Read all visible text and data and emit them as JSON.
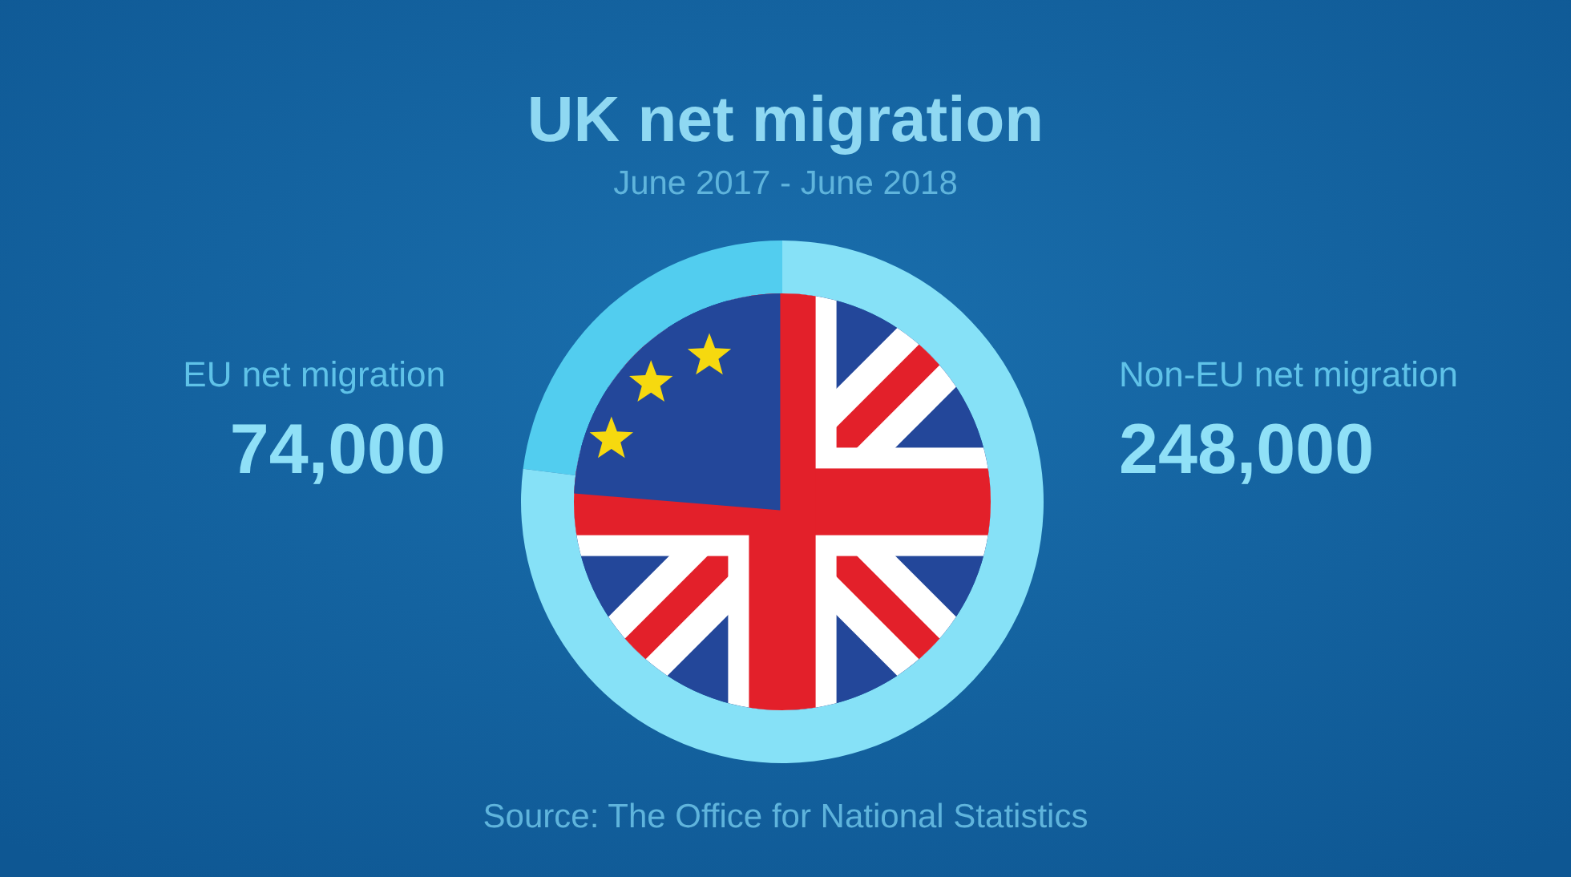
{
  "chart_data": {
    "type": "donut",
    "title": "UK net migration",
    "subtitle": "June 2017 - June 2018",
    "categories": [
      "EU net migration",
      "Non-EU net migration"
    ],
    "values": [
      74000,
      248000
    ],
    "value_labels": [
      "74,000",
      "248,000"
    ],
    "colors": [
      "#52cdef",
      "#86e1f7"
    ],
    "annotations": [
      "Source: The Office for National Statistics"
    ]
  }
}
